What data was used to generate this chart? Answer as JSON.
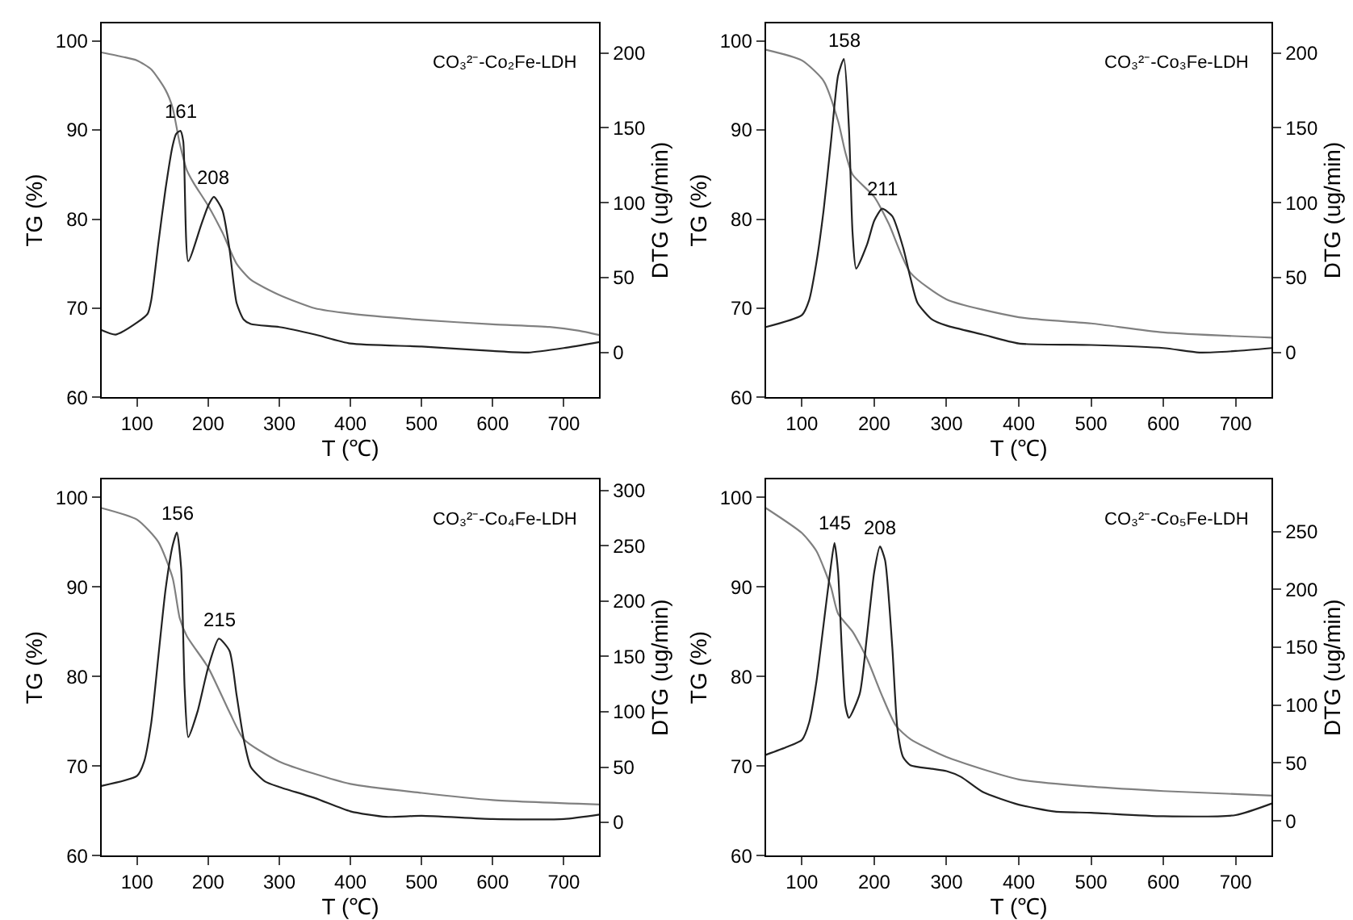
{
  "chart_data": [
    {
      "type": "line",
      "xlabel": "T (℃)",
      "ylabel": "TG (%)",
      "y2label": "DTG (ug/min)",
      "xlim": [
        50,
        750
      ],
      "xticks": [
        100,
        200,
        300,
        400,
        500,
        600,
        700
      ],
      "ylim": [
        60,
        102
      ],
      "yticks": [
        60,
        70,
        80,
        90,
        100
      ],
      "y2lim": [
        -30,
        220
      ],
      "y2ticks": [
        0,
        50,
        100,
        150,
        200
      ],
      "annotations": [
        "CO₃²⁻-Co₂Fe-LDH",
        "161",
        "208"
      ],
      "series": [
        {
          "color": "#808080",
          "x": [
            50,
            80,
            100,
            120,
            140,
            150,
            160,
            170,
            180,
            200,
            220,
            240,
            260,
            300,
            350,
            400,
            500,
            600,
            680,
            720,
            750
          ],
          "values": [
            98.7,
            98.2,
            97.8,
            96.8,
            94.5,
            92.5,
            88.5,
            85.5,
            84,
            81.5,
            78.5,
            75,
            73.2,
            71.5,
            70,
            69.4,
            68.7,
            68.2,
            67.9,
            67.5,
            67
          ]
        },
        {
          "axis": "y2",
          "color": "#222222",
          "x": [
            50,
            70,
            100,
            115,
            120,
            130,
            140,
            150,
            155,
            161,
            165,
            172,
            190,
            200,
            208,
            220,
            230,
            240,
            250,
            260,
            300,
            350,
            400,
            500,
            600,
            650,
            700,
            750
          ],
          "values": [
            15,
            12,
            20,
            26,
            35,
            73,
            109,
            138,
            146,
            148,
            141,
            61,
            85,
            98,
            104,
            95,
            69,
            33,
            22,
            19,
            17,
            12,
            6,
            4,
            1,
            0,
            3,
            7
          ]
        }
      ]
    },
    {
      "type": "line",
      "xlabel": "T (℃)",
      "ylabel": "TG (%)",
      "y2label": "DTG (ug/min)",
      "xlim": [
        50,
        750
      ],
      "xticks": [
        100,
        200,
        300,
        400,
        500,
        600,
        700
      ],
      "ylim": [
        60,
        102
      ],
      "yticks": [
        60,
        70,
        80,
        90,
        100
      ],
      "y2lim": [
        -30,
        220
      ],
      "y2ticks": [
        0,
        50,
        100,
        150,
        200
      ],
      "annotations": [
        "CO₃²⁻-Co₃Fe-LDH",
        "158",
        "211"
      ],
      "series": [
        {
          "color": "#808080",
          "x": [
            50,
            100,
            130,
            150,
            160,
            170,
            200,
            220,
            250,
            300,
            400,
            500,
            600,
            750
          ],
          "values": [
            99,
            97.8,
            95.5,
            91,
            87.5,
            85,
            82.5,
            79.5,
            74,
            71,
            69,
            68.3,
            67.3,
            66.7
          ]
        },
        {
          "axis": "y2",
          "color": "#222222",
          "x": [
            50,
            100,
            110,
            120,
            130,
            140,
            150,
            158,
            165,
            170,
            175,
            190,
            200,
            211,
            225,
            240,
            250,
            260,
            280,
            300,
            350,
            400,
            500,
            600,
            650,
            700,
            750
          ],
          "values": [
            17,
            25,
            35,
            60,
            95,
            140,
            185,
            196,
            150,
            80,
            56,
            72,
            88,
            96,
            91,
            70,
            50,
            33,
            22,
            18,
            12,
            6,
            5,
            3,
            0,
            1,
            3
          ]
        }
      ]
    },
    {
      "type": "line",
      "xlabel": "T (℃)",
      "ylabel": "TG (%)",
      "y2label": "DTG (ug/min)",
      "xlim": [
        50,
        750
      ],
      "xticks": [
        100,
        200,
        300,
        400,
        500,
        600,
        700
      ],
      "ylim": [
        60,
        102
      ],
      "yticks": [
        60,
        70,
        80,
        90,
        100
      ],
      "y2lim": [
        -30,
        310
      ],
      "y2ticks": [
        0,
        50,
        100,
        150,
        200,
        250,
        300
      ],
      "annotations": [
        "CO₃²⁻-Co₄Fe-LDH",
        "156",
        "215"
      ],
      "series": [
        {
          "color": "#808080",
          "x": [
            50,
            100,
            130,
            150,
            160,
            170,
            200,
            230,
            250,
            300,
            400,
            500,
            600,
            750
          ],
          "values": [
            98.8,
            97.5,
            95,
            91,
            86.5,
            84.5,
            81,
            76,
            73,
            70.5,
            68,
            67,
            66.2,
            65.7
          ]
        },
        {
          "axis": "y2",
          "color": "#222222",
          "x": [
            50,
            100,
            110,
            120,
            130,
            140,
            150,
            156,
            162,
            167,
            172,
            185,
            200,
            215,
            230,
            240,
            250,
            260,
            280,
            300,
            350,
            400,
            450,
            500,
            600,
            700,
            750
          ],
          "values": [
            33,
            42,
            55,
            90,
            150,
            210,
            250,
            262,
            230,
            120,
            77,
            100,
            140,
            166,
            155,
            115,
            75,
            50,
            37,
            32,
            22,
            10,
            5,
            6,
            3,
            3,
            7
          ]
        }
      ]
    },
    {
      "type": "line",
      "xlabel": "T (℃)",
      "ylabel": "TG (%)",
      "y2label": "DTG (ug/min)",
      "xlim": [
        50,
        750
      ],
      "xticks": [
        100,
        200,
        300,
        400,
        500,
        600,
        700
      ],
      "ylim": [
        60,
        102
      ],
      "yticks": [
        60,
        70,
        80,
        90,
        100
      ],
      "y2lim": [
        -30,
        295
      ],
      "y2ticks": [
        0,
        50,
        100,
        150,
        200,
        250
      ],
      "annotations": [
        "CO₃²⁻-Co₅Fe-LDH",
        "145",
        "208"
      ],
      "series": [
        {
          "color": "#808080",
          "x": [
            50,
            100,
            120,
            140,
            150,
            170,
            190,
            210,
            230,
            250,
            300,
            400,
            500,
            600,
            750
          ],
          "values": [
            98.8,
            96,
            94,
            90,
            87,
            85,
            82,
            78,
            74.5,
            73,
            71,
            68.5,
            67.7,
            67.2,
            66.7
          ]
        },
        {
          "axis": "y2",
          "color": "#222222",
          "x": [
            50,
            80,
            100,
            110,
            120,
            130,
            140,
            145,
            150,
            155,
            160,
            165,
            180,
            190,
            200,
            208,
            215,
            225,
            232,
            240,
            250,
            280,
            300,
            320,
            350,
            400,
            450,
            500,
            600,
            700,
            750
          ],
          "values": [
            57,
            64,
            70,
            85,
            120,
            170,
            220,
            240,
            215,
            150,
            100,
            89,
            110,
            160,
            215,
            237,
            225,
            150,
            80,
            55,
            48,
            45,
            43,
            38,
            25,
            14,
            8,
            7,
            4,
            5,
            15
          ]
        }
      ]
    }
  ]
}
